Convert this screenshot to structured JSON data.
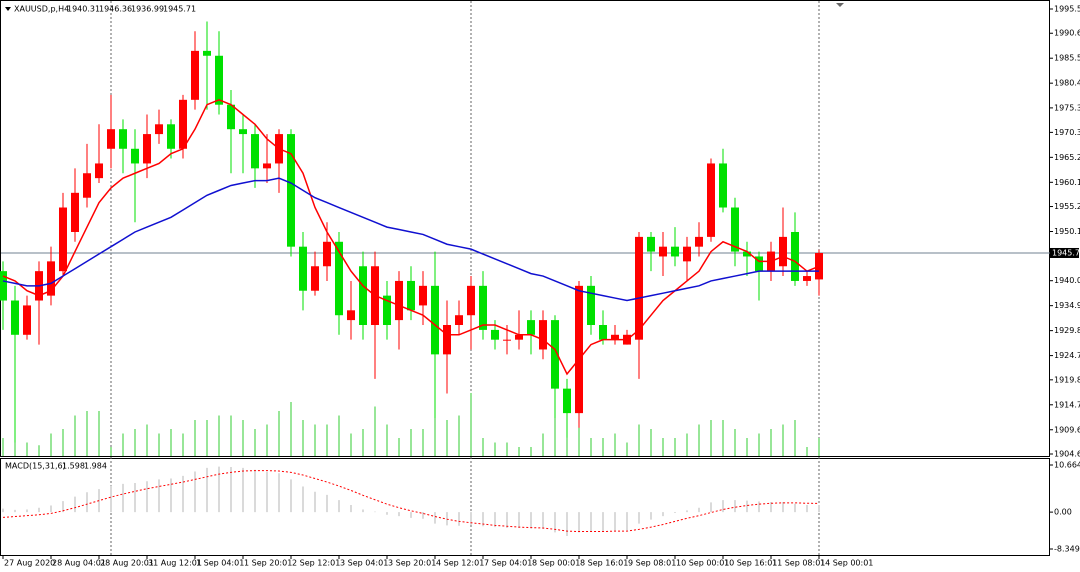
{
  "chart_data": {
    "type": "candlestick",
    "symbol": "XAUUSD,p,H4",
    "categories": [
      "27 Aug 2020",
      null,
      null,
      null,
      "28 Aug 04:01",
      null,
      null,
      null,
      "28 Aug 20:01",
      null,
      null,
      null,
      "31 Aug 12:01",
      null,
      null,
      null,
      "1 Sep 04:01",
      null,
      null,
      null,
      "1 Sep 20:01",
      null,
      null,
      null,
      "2 Sep 12:01",
      null,
      null,
      null,
      "3 Sep 04:01",
      null,
      null,
      null,
      "3 Sep 20:01",
      null,
      null,
      null,
      "4 Sep 12:01",
      null,
      null,
      null,
      "7 Sep 04:01",
      null,
      null,
      null,
      "8 Sep 00:01",
      null,
      null,
      null,
      "8 Sep 16:01",
      null,
      null,
      null,
      "9 Sep 08:01",
      null,
      null,
      null,
      "10 Sep 00:01",
      null,
      null,
      null,
      "10 Sep 16:01",
      null,
      null,
      null,
      "11 Sep 08:01",
      null,
      null,
      null,
      "14 Sep 00:01"
    ],
    "ohlc": {
      "open": [
        1942,
        1936,
        1929,
        1936,
        1937,
        1942,
        1950,
        1957,
        1961,
        1967,
        1971,
        1967,
        1964,
        1970,
        1972,
        1967,
        1977,
        1987,
        1986,
        1976,
        1971,
        1970,
        1963,
        1964,
        1970,
        1947,
        1938,
        1943,
        1948,
        1932,
        1943,
        1931,
        1937,
        1932,
        1940,
        1935,
        1939,
        1925,
        1931,
        1933,
        1939,
        1930,
        1928,
        1928,
        1932,
        1926,
        1932,
        1918,
        1913,
        1939,
        1931,
        1928,
        1927,
        1928,
        1949,
        1945,
        1947,
        1944,
        1947,
        1949,
        1964,
        1955,
        1946,
        1945,
        1942,
        1943,
        1950,
        1940,
        1940.31
      ],
      "high": [
        1944,
        1939,
        1937,
        1944,
        1947,
        1958,
        1963,
        1968,
        1972,
        1978,
        1973,
        1971,
        1974,
        1975,
        1973,
        1978,
        1991,
        1993,
        1991,
        1979,
        1974,
        1972,
        1970,
        1971,
        1971,
        1950,
        1946,
        1952,
        1950,
        1940,
        1946,
        1946,
        1940,
        1942,
        1943,
        1942,
        1946,
        1936,
        1936,
        1941,
        1942,
        1932,
        1931,
        1934,
        1934,
        1934,
        1933,
        1920,
        1940,
        1941,
        1934,
        1931,
        1930,
        1950,
        1950,
        1950,
        1951,
        1949,
        1952,
        1965,
        1967,
        1957,
        1948,
        1946,
        1948,
        1955,
        1954,
        1942,
        1946.36
      ],
      "low": [
        1930,
        1907,
        1928,
        1927,
        1935,
        1941,
        1948,
        1955,
        1960,
        1963,
        1962,
        1952,
        1961,
        1968,
        1965,
        1965,
        1975,
        1975,
        1974,
        1962,
        1962,
        1959,
        1960,
        1958,
        1945,
        1934,
        1937,
        1940,
        1929,
        1928,
        1928,
        1920,
        1928,
        1926,
        1932,
        1931,
        1912,
        1917,
        1929,
        1926,
        1928,
        1926,
        1925,
        1926,
        1925,
        1924,
        1912,
        1908,
        1910,
        1929,
        1927,
        1927,
        1927,
        1920,
        1942,
        1941,
        1943,
        1940,
        1945,
        1948,
        1954,
        1943,
        1941,
        1936,
        1940,
        1941,
        1939,
        1939,
        1936.99
      ],
      "close": [
        1936,
        1929,
        1935,
        1942,
        1944,
        1955,
        1958,
        1962,
        1964,
        1971,
        1967,
        1964,
        1970,
        1972,
        1967,
        1977,
        1987,
        1986,
        1976,
        1971,
        1970,
        1963,
        1964,
        1970,
        1947,
        1938,
        1943,
        1948,
        1933,
        1934,
        1931,
        1943,
        1931,
        1940,
        1934,
        1939,
        1925,
        1931,
        1933,
        1939,
        1930,
        1928,
        1928,
        1929,
        1929,
        1932,
        1918,
        1913,
        1939,
        1931,
        1928,
        1929,
        1929,
        1949,
        1946,
        1947,
        1945,
        1947,
        1949,
        1964,
        1955,
        1946,
        1945,
        1942,
        1946,
        1949,
        1940,
        1941,
        1945.71
      ]
    },
    "up_color": "#ff0000",
    "down_color": "#00e000",
    "ma_fast": {
      "color": "#ff0000",
      "values": [
        1941,
        1940,
        1938,
        1937,
        1938,
        1941,
        1946,
        1951,
        1956,
        1959,
        1961,
        1962,
        1963,
        1964,
        1966,
        1967,
        1971,
        1976,
        1977,
        1976,
        1974,
        1972,
        1969,
        1967,
        1966,
        1962,
        1955,
        1950,
        1946,
        1942,
        1939,
        1937,
        1936,
        1935,
        1934,
        1933,
        1931,
        1929,
        1929,
        1930,
        1931,
        1931,
        1930,
        1929,
        1929,
        1928,
        1926,
        1921,
        1924,
        1927,
        1928,
        1928,
        1928,
        1930,
        1933,
        1936,
        1938,
        1940,
        1942,
        1946,
        1948,
        1947,
        1946,
        1944,
        1944,
        1945,
        1944,
        1942,
        1943
      ]
    },
    "ma_slow": {
      "color": "#1010d0",
      "values": [
        1940,
        1939.5,
        1939,
        1939,
        1939.5,
        1941,
        1942.5,
        1944,
        1945.5,
        1947,
        1948.5,
        1950,
        1951,
        1952,
        1953,
        1954.5,
        1956,
        1957.5,
        1958.5,
        1959.5,
        1960,
        1960.5,
        1960.5,
        1961,
        1960,
        1958.5,
        1957,
        1956,
        1955,
        1954,
        1953,
        1952,
        1951,
        1950.5,
        1950,
        1949.5,
        1948.5,
        1947.5,
        1947,
        1946.5,
        1945.5,
        1944.5,
        1943.5,
        1942.5,
        1941.5,
        1941,
        1940,
        1939,
        1938,
        1937.5,
        1937,
        1936.5,
        1936,
        1936.5,
        1937,
        1937.5,
        1938,
        1938.5,
        1939,
        1940,
        1940.5,
        1941,
        1941.5,
        1942,
        1942,
        1942,
        1942,
        1942,
        1942
      ]
    },
    "volume": {
      "color": "#32cd32",
      "ylim": [
        0,
        100
      ],
      "values": [
        20,
        40,
        15,
        12,
        25,
        30,
        45,
        50,
        50,
        10,
        25,
        30,
        35,
        25,
        30,
        25,
        40,
        40,
        45,
        45,
        40,
        30,
        35,
        50,
        60,
        40,
        35,
        35,
        45,
        25,
        30,
        55,
        35,
        20,
        30,
        30,
        50,
        40,
        45,
        70,
        20,
        15,
        15,
        10,
        10,
        25,
        45,
        30,
        45,
        20,
        20,
        25,
        15,
        35,
        30,
        20,
        20,
        25,
        35,
        40,
        40,
        30,
        20,
        25,
        30,
        35,
        40,
        10,
        20
      ]
    },
    "ylim": [
      1904.24,
      1997.39
    ],
    "yticks": [
      1995.55,
      {
        "value": 1990.6,
        "label": "1990.60"
      },
      {
        "value": 1985.5,
        "label": "1985.50"
      },
      {
        "value": 1980.4,
        "label": "1980.40"
      },
      1975.35,
      1970.35,
      1965.25,
      1960.15,
      {
        "value": 1955.2,
        "label": "1955.20"
      },
      {
        "value": 1950.1,
        "label": "1950.10"
      },
      1940.05,
      1934.95,
      1929.85,
      1924.75,
      {
        "value": 1919.8,
        "label": "1919.80"
      },
      {
        "value": 1914.7,
        "label": "1914.70"
      },
      {
        "value": 1909.6,
        "label": "1909.60"
      },
      1904.65
    ],
    "macd": {
      "name": "MACD(15,31,6)",
      "histogram_color": "#b4b4b4",
      "signal_color": "#ff0000",
      "histogram": [
        0.8,
        0.5,
        0.6,
        1,
        1.5,
        2.5,
        3.5,
        4.5,
        5.2,
        6,
        6.4,
        6.6,
        7,
        7.4,
        7.6,
        8.2,
        9.2,
        10,
        10.3,
        10.2,
        10,
        9.6,
        9.1,
        8.8,
        7.4,
        5.8,
        4.6,
        3.9,
        2.7,
        1.6,
        0.6,
        0.1,
        -0.6,
        -0.9,
        -1.3,
        -1.5,
        -2.6,
        -3,
        -3.1,
        -2.9,
        -3.2,
        -3.4,
        -3.6,
        -3.6,
        -3.7,
        -3.8,
        -4.6,
        -5.4,
        -4.6,
        -4.4,
        -4.3,
        -4.2,
        -4.1,
        -2.6,
        -1.7,
        -0.9,
        -0.2,
        0.4,
        1,
        2.2,
        2.7,
        2.7,
        2.6,
        2.4,
        2.3,
        2.3,
        1.9,
        1.6,
        1.598
      ],
      "signal": [
        -1.2,
        -1,
        -0.8,
        -0.6,
        -0.3,
        0.3,
        1,
        1.8,
        2.6,
        3.4,
        4.1,
        4.7,
        5.3,
        5.8,
        6.3,
        6.8,
        7.4,
        8,
        8.6,
        9,
        9.3,
        9.4,
        9.4,
        9.3,
        9,
        8.4,
        7.6,
        6.8,
        5.9,
        4.9,
        3.8,
        2.8,
        1.8,
        1,
        0.3,
        -0.3,
        -1,
        -1.6,
        -2.1,
        -2.4,
        -2.7,
        -3,
        -3.2,
        -3.4,
        -3.5,
        -3.6,
        -3.9,
        -4.3,
        -4.4,
        -4.4,
        -4.4,
        -4.3,
        -4.3,
        -3.9,
        -3.4,
        -2.8,
        -2.1,
        -1.4,
        -0.8,
        -0.1,
        0.6,
        1.1,
        1.5,
        1.8,
        2,
        2.1,
        2.1,
        2,
        1.984
      ],
      "ylim": [
        -8.349,
        10.664
      ],
      "yticks": [
        10.664,
        {
          "value": 0,
          "label": "0.00"
        },
        -8.349
      ]
    }
  }
}
